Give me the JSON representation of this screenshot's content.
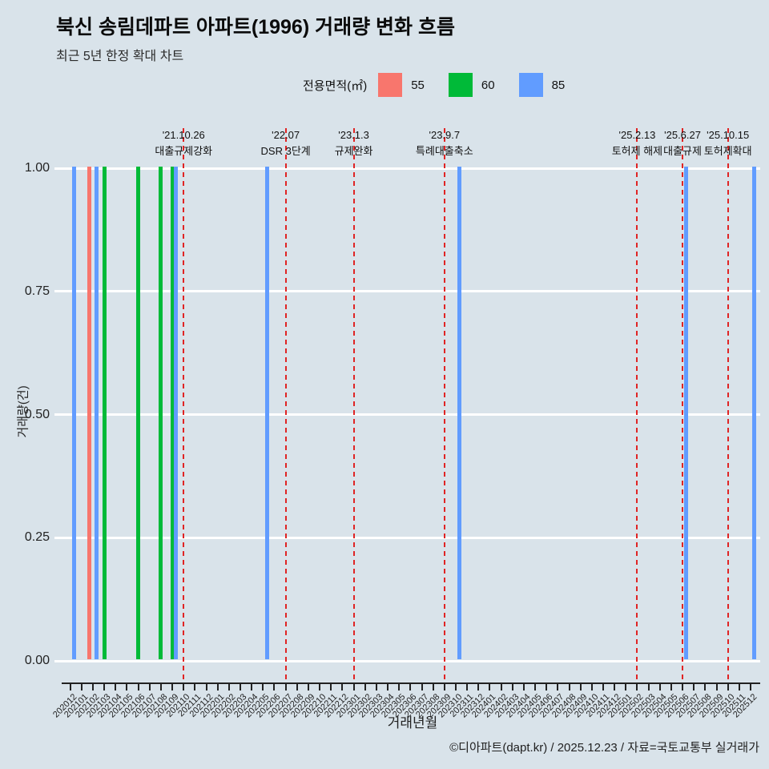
{
  "footer": {
    "credit": "©디아파트(dapt.kr) / 2025.12.23 / 자료=국토교통부 실거래가"
  },
  "chart_data": {
    "type": "bar",
    "title": "북신 송림데파트 아파트(1996) 거래량 변화 흐름",
    "subtitle": "최근 5년 한정 확대 차트",
    "legend_title": "전용면적(㎡)",
    "xlabel": "거래년월",
    "ylabel": "거래량(건)",
    "ylim": [
      0,
      1
    ],
    "y_ticks": [
      1.0,
      0.75,
      0.5,
      0.25,
      0.0
    ],
    "y_tick_labels": [
      "1.00",
      "0.75",
      "0.50",
      "0.25",
      "0.00"
    ],
    "grid": "horizontal-white",
    "legend_position": "top-center",
    "x_categories": [
      "202012",
      "202101",
      "202102",
      "202103",
      "202104",
      "202105",
      "202106",
      "202107",
      "202108",
      "202109",
      "202110",
      "202111",
      "202112",
      "202201",
      "202202",
      "202203",
      "202204",
      "202205",
      "202206",
      "202207",
      "202208",
      "202209",
      "202210",
      "202211",
      "202212",
      "202301",
      "202302",
      "202303",
      "202304",
      "202305",
      "202306",
      "202307",
      "202308",
      "202309",
      "202310",
      "202311",
      "202312",
      "202401",
      "202402",
      "202403",
      "202404",
      "202405",
      "202406",
      "202407",
      "202408",
      "202409",
      "202410",
      "202411",
      "202412",
      "202501",
      "202502",
      "202503",
      "202504",
      "202505",
      "202506",
      "202507",
      "202508",
      "202509",
      "202510",
      "202511",
      "202512"
    ],
    "series": [
      {
        "name": "55",
        "color": "#F8766D",
        "points": [
          {
            "month": "202102",
            "value": 1
          }
        ]
      },
      {
        "name": "60",
        "color": "#00BA38",
        "points": [
          {
            "month": "202103",
            "value": 1
          },
          {
            "month": "202106",
            "value": 1
          },
          {
            "month": "202108",
            "value": 1
          },
          {
            "month": "202109",
            "value": 1
          }
        ]
      },
      {
        "name": "85",
        "color": "#619CFF",
        "points": [
          {
            "month": "202012",
            "value": 1
          },
          {
            "month": "202102",
            "value": 1
          },
          {
            "month": "202109",
            "value": 1
          },
          {
            "month": "202205",
            "value": 1
          },
          {
            "month": "202310",
            "value": 1
          },
          {
            "month": "202506",
            "value": 1
          },
          {
            "month": "202512",
            "value": 1
          }
        ]
      }
    ],
    "event_lines": [
      {
        "month": "202110",
        "date": "'21.10.26",
        "label": "대출규제강화"
      },
      {
        "month": "202207",
        "date": "'22.07",
        "label": "DSR 3단계"
      },
      {
        "month": "202301",
        "date": "'23.1.3",
        "label": "규제완화"
      },
      {
        "month": "202309",
        "date": "'23.9.7",
        "label": "특례대출축소"
      },
      {
        "month": "202502",
        "date": "'25.2.13",
        "label": "토허제 해제"
      },
      {
        "month": "202506",
        "date": "'25.6.27",
        "label": "대출규제"
      },
      {
        "month": "202510",
        "date": "'25.10.15",
        "label": "토허제확대"
      }
    ],
    "event_line_color": "#e02424"
  }
}
